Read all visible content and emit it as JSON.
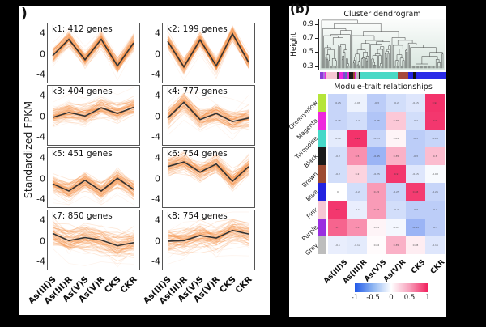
{
  "chart_data": [
    {
      "type": "line",
      "subtype": "gene-cluster-profiles",
      "panel_label": ")",
      "ylabel": "Standardized FPKM",
      "yticks": [
        4,
        0,
        -4
      ],
      "ylim": [
        -5.5,
        5.5
      ],
      "x_categories": [
        "As(III)S",
        "As(III)R",
        "As(V)S",
        "As(V)R",
        "CKS",
        "CKR"
      ],
      "series": [
        {
          "name": "k1: 412 genes",
          "values": [
            -0.6,
            2.6,
            -1.4,
            2.6,
            -2.6,
            1.9
          ],
          "spread": 1.0
        },
        {
          "name": "k2: 199 genes",
          "values": [
            2.2,
            -2.8,
            2.5,
            -2.6,
            3.7,
            -1.9
          ],
          "spread": 0.9
        },
        {
          "name": "k3: 404 genes",
          "values": [
            -0.5,
            0.5,
            -0.2,
            1.4,
            0.3,
            1.5
          ],
          "spread": 1.2
        },
        {
          "name": "k4: 777 genes",
          "values": [
            -0.6,
            2.5,
            -0.9,
            0.3,
            -1.3,
            -0.6
          ],
          "spread": 1.3
        },
        {
          "name": "k5: 451 genes",
          "values": [
            -1.3,
            -2.7,
            -0.6,
            -2.7,
            -0.2,
            -2.4
          ],
          "spread": 1.2
        },
        {
          "name": "k6: 754 genes",
          "values": [
            2.1,
            3.0,
            1.0,
            2.6,
            -0.8,
            2.1
          ],
          "spread": 1.2
        },
        {
          "name": "k7: 850 genes",
          "values": [
            1.2,
            -0.2,
            0.4,
            -0.1,
            -1.2,
            -0.6
          ],
          "spread": 1.6
        },
        {
          "name": "k8: 754 genes",
          "values": [
            -0.3,
            -0.2,
            0.8,
            0.3,
            1.8,
            1.1
          ],
          "spread": 1.6
        }
      ],
      "line_color": "#f68b40",
      "mean_line_color": "#333333"
    },
    {
      "type": "line",
      "subtype": "dendrogram",
      "panel_label": "(b)",
      "title": "Cluster dendrogram",
      "ylabel": "Height",
      "yticks": [
        0.9,
        0.7,
        0.5,
        0.3
      ],
      "ylim": [
        0.25,
        0.97
      ],
      "module_strip": [
        {
          "color": "#8a3bd9",
          "frac": 2.5
        },
        {
          "color": "#b06fe0",
          "frac": 1.5
        },
        {
          "color": "#ee28dd",
          "frac": 1.5
        },
        {
          "color": "#f6c6d3",
          "frac": 8
        },
        {
          "color": "#333333",
          "frac": 1.5
        },
        {
          "color": "#ee28dd",
          "frac": 3
        },
        {
          "color": "#8a3bd9",
          "frac": 2
        },
        {
          "color": "#5b6fb5",
          "frac": 1.5
        },
        {
          "color": "#ee28dd",
          "frac": 2
        },
        {
          "color": "#1a1a1a",
          "frac": 3
        },
        {
          "color": "#9c4a32",
          "frac": 1.5
        },
        {
          "color": "#ee28dd",
          "frac": 1
        },
        {
          "color": "#bdbdbd",
          "frac": 2
        },
        {
          "color": "#1a1a1a",
          "frac": 1.5
        },
        {
          "color": "#49d9c6",
          "frac": 30
        },
        {
          "color": "#a6493d",
          "frac": 8.5
        },
        {
          "color": "#2222e0",
          "frac": 3.5
        },
        {
          "color": "#111111",
          "frac": 2
        },
        {
          "color": "#2a2ae8",
          "frac": 25
        }
      ]
    },
    {
      "type": "heatmap",
      "title": "Module-trait relationships",
      "rows": [
        "Greenyellow",
        "Magenta",
        "Turquoise",
        "Black",
        "Brown",
        "Blue",
        "Pink",
        "Purple",
        "Grey"
      ],
      "row_swatch_colors": [
        "#b5e53a",
        "#ee28dd",
        "#45d8c8",
        "#1a1a1a",
        "#9c4a32",
        "#2222e0",
        "#f6c6d3",
        "#9a2fe0",
        "#bdbdbd"
      ],
      "columns": [
        "As(III)S",
        "As(III)R",
        "As(V)S",
        "As(V)R",
        "CKS",
        "CKR"
      ],
      "values": [
        [
          -0.25,
          -0.08,
          -0.3,
          -0.2,
          -0.15,
          0.92
        ],
        [
          -0.25,
          -0.2,
          -0.35,
          0.25,
          -0.2,
          0.9
        ],
        [
          -0.12,
          0.92,
          -0.25,
          0.05,
          -0.3,
          -0.25
        ],
        [
          -0.2,
          0.5,
          -0.45,
          0.35,
          -0.3,
          0.3
        ],
        [
          -0.2,
          0.2,
          -0.25,
          0.9,
          -0.15,
          -0.03
        ],
        [
          0.0,
          -0.2,
          0.45,
          -0.25,
          0.88,
          -0.25
        ],
        [
          0.9,
          -0.1,
          0.45,
          -0.2,
          -0.3,
          -0.3
        ],
        [
          0.7,
          0.5,
          0.05,
          -0.05,
          -0.45,
          -0.3
        ],
        [
          -0.1,
          -0.12,
          0.02,
          0.35,
          0.08,
          -0.15
        ]
      ],
      "colorbar_ticks": [
        -1,
        -0.5,
        0,
        0.5,
        1
      ],
      "scale": {
        "min": -1,
        "max": 1,
        "min_color": "#2058e8",
        "mid_color": "#ffffff",
        "max_color": "#f2215e"
      },
      "legend_position": "bottom"
    }
  ]
}
